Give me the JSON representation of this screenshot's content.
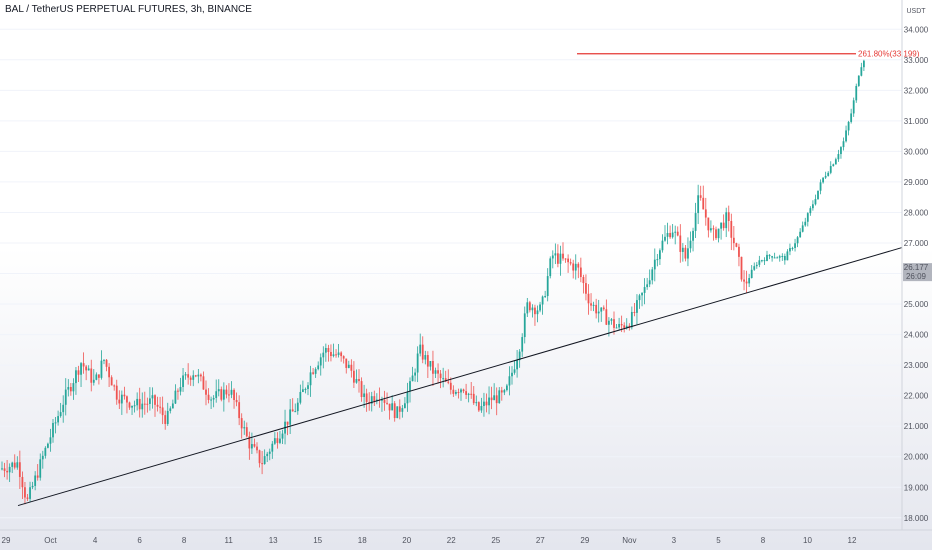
{
  "chart_data": {
    "type": "candlestick",
    "title": "BAL / TetherUS PERPETUAL FUTURES, 3h, BINANCE",
    "y_unit": "USDT",
    "ylim": [
      17.6,
      34.5
    ],
    "y_ticks": [
      "34.000",
      "33.000",
      "32.000",
      "31.000",
      "30.000",
      "29.000",
      "28.000",
      "27.000",
      "26.000",
      "25.000",
      "24.000",
      "23.000",
      "22.000",
      "21.000",
      "20.000",
      "19.000",
      "18.000"
    ],
    "x_tick_labels": [
      "29",
      "Oct",
      "4",
      "6",
      "8",
      "11",
      "13",
      "15",
      "18",
      "20",
      "22",
      "25",
      "27",
      "29",
      "Nov",
      "3",
      "5",
      "8",
      "10",
      "12"
    ],
    "last_price_label": "26.177",
    "countdown_label": "26:09",
    "fib_level": {
      "label": "261.80%(33.199)",
      "value": 33.199
    },
    "colors": {
      "up": "#26a69a",
      "down": "#ef5350",
      "fib": "#e53935",
      "trendline": "#131722"
    },
    "trendline": {
      "start": [
        0,
        18.4
      ],
      "end": [
        1,
        26.85
      ]
    },
    "price_path": [
      [
        0.0,
        19.6
      ],
      [
        0.02,
        19.8
      ],
      [
        0.03,
        18.5
      ],
      [
        0.05,
        20.2
      ],
      [
        0.07,
        21.8
      ],
      [
        0.09,
        23.1
      ],
      [
        0.105,
        22.4
      ],
      [
        0.115,
        23.2
      ],
      [
        0.13,
        22.0
      ],
      [
        0.15,
        21.7
      ],
      [
        0.17,
        21.8
      ],
      [
        0.185,
        21.2
      ],
      [
        0.2,
        22.4
      ],
      [
        0.215,
        22.8
      ],
      [
        0.235,
        21.9
      ],
      [
        0.255,
        22.2
      ],
      [
        0.275,
        20.5
      ],
      [
        0.29,
        19.8
      ],
      [
        0.31,
        20.8
      ],
      [
        0.33,
        21.7
      ],
      [
        0.345,
        22.8
      ],
      [
        0.36,
        23.5
      ],
      [
        0.375,
        23.3
      ],
      [
        0.39,
        22.8
      ],
      [
        0.405,
        21.8
      ],
      [
        0.42,
        22.1
      ],
      [
        0.44,
        21.4
      ],
      [
        0.455,
        22.3
      ],
      [
        0.465,
        23.5
      ],
      [
        0.48,
        22.8
      ],
      [
        0.5,
        22.2
      ],
      [
        0.515,
        22.3
      ],
      [
        0.53,
        21.5
      ],
      [
        0.545,
        21.9
      ],
      [
        0.56,
        22.0
      ],
      [
        0.575,
        23.5
      ],
      [
        0.585,
        25.0
      ],
      [
        0.6,
        24.8
      ],
      [
        0.612,
        26.6
      ],
      [
        0.625,
        26.4
      ],
      [
        0.64,
        26.2
      ],
      [
        0.655,
        25.0
      ],
      [
        0.67,
        24.6
      ],
      [
        0.685,
        24.2
      ],
      [
        0.7,
        24.5
      ],
      [
        0.715,
        25.5
      ],
      [
        0.73,
        26.8
      ],
      [
        0.745,
        27.5
      ],
      [
        0.76,
        26.5
      ],
      [
        0.775,
        28.5
      ],
      [
        0.79,
        27.2
      ],
      [
        0.805,
        27.8
      ],
      [
        0.815,
        26.9
      ],
      [
        0.825,
        25.6
      ],
      [
        0.84,
        26.4
      ],
      [
        0.855,
        26.6
      ],
      [
        0.87,
        26.5
      ],
      [
        0.885,
        27.2
      ],
      [
        0.9,
        28.2
      ],
      [
        0.912,
        29.1
      ],
      [
        0.925,
        29.7
      ],
      [
        0.935,
        30.3
      ],
      [
        0.945,
        31.4
      ],
      [
        0.953,
        32.7
      ],
      [
        0.96,
        33.2
      ]
    ]
  }
}
